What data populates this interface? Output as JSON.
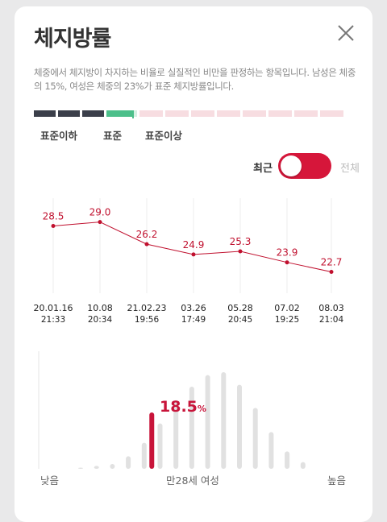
{
  "header": {
    "title": "체지방률"
  },
  "description": "체중에서 체지방이 차지하는 비율로 실질적인 비만을 판정하는 항목입니다. 남성은 체중의 15%, 여성은 체중의 23%가 표준 체지방률입니다.",
  "scale": {
    "labels": [
      "표준이하",
      "표준",
      "표준이상"
    ],
    "colors": {
      "below": "#3b3f4a",
      "standard": "#4cbf8a",
      "standard_light": "#d6f0e3",
      "above": "#f7dde1"
    }
  },
  "toggle": {
    "active_label": "최근",
    "inactive_label": "전체",
    "accent": "#d6163a"
  },
  "chart_data": [
    {
      "type": "line",
      "x": [
        {
          "date": "20.01.16",
          "time": "21:33"
        },
        {
          "date": "10.08",
          "time": "20:34"
        },
        {
          "date": "21.02.23",
          "time": "19:56"
        },
        {
          "date": "03.26",
          "time": "17:49"
        },
        {
          "date": "05.28",
          "time": "20:45"
        },
        {
          "date": "07.02",
          "time": "19:25"
        },
        {
          "date": "08.03",
          "time": "21:04"
        }
      ],
      "values": [
        28.5,
        29.0,
        26.2,
        24.9,
        25.3,
        23.9,
        22.7
      ],
      "ylim": [
        20,
        31
      ],
      "grid": "vertical",
      "color": "#c0102e"
    },
    {
      "type": "bar",
      "values": [
        0.01,
        0.03,
        0.05,
        0.13,
        0.27,
        0.47,
        0.71,
        0.85,
        0.97,
        1.0,
        0.87,
        0.63,
        0.38,
        0.18,
        0.07
      ],
      "highlight": {
        "value": "18.5",
        "unit": "%",
        "position": 0.32
      },
      "xlabel_left": "낮음",
      "xlabel_center": "만28세 여성",
      "xlabel_right": "높음",
      "bar_color": "#e1e1e1",
      "highlight_color": "#c8143a"
    }
  ]
}
